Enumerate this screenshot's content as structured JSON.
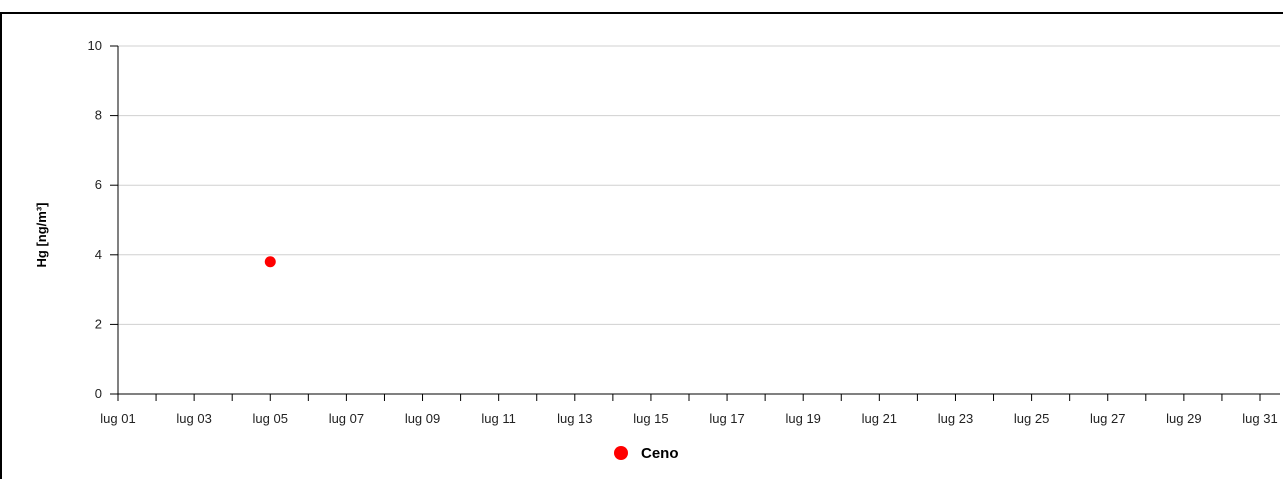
{
  "chart_data": {
    "type": "scatter",
    "ylabel": "Hg [ng/m³]",
    "ylim": [
      0,
      10
    ],
    "y_ticks": [
      "0",
      "2",
      "4",
      "6",
      "8",
      "10"
    ],
    "x_start": "2023-07-01",
    "x_end": "2023-07-31",
    "x_tick_labels": [
      "lug 01",
      "lug 03",
      "lug 05",
      "lug 07",
      "lug 09",
      "lug 11",
      "lug 13",
      "lug 15",
      "lug 17",
      "lug 19",
      "lug 21",
      "lug 23",
      "lug 25",
      "lug 27",
      "lug 29",
      "lug 31"
    ],
    "grid": true,
    "legend_position": "bottom-center",
    "series": [
      {
        "name": "Ceno",
        "color": "#ff0000",
        "points": [
          {
            "x": "2023-07-05",
            "y": 3.8
          }
        ]
      }
    ]
  }
}
